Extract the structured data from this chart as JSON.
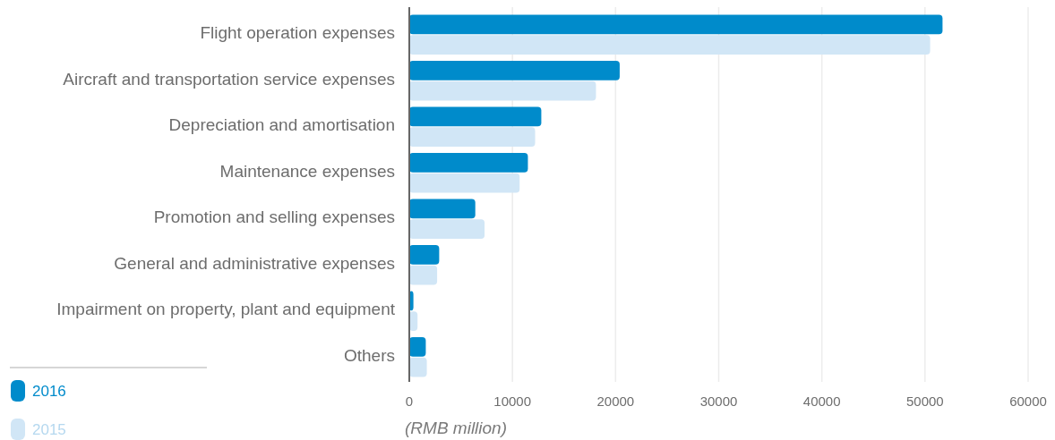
{
  "chart_data": {
    "type": "bar",
    "orientation": "horizontal",
    "categories": [
      "Flight operation expenses",
      "Aircraft and transportation service expenses",
      "Depreciation and amortisation",
      "Maintenance expenses",
      "Promotion and selling expenses",
      "General and administrative expenses",
      "Impairment on property, plant and equipment",
      "Others"
    ],
    "series": [
      {
        "name": "2016",
        "color": "#008bcb",
        "values": [
          51700,
          20400,
          12800,
          11500,
          6400,
          2900,
          400,
          1600
        ]
      },
      {
        "name": "2015",
        "color": "#d1e6f6",
        "values": [
          50500,
          18100,
          12200,
          10700,
          7300,
          2700,
          800,
          1700
        ]
      }
    ],
    "xlim": [
      0,
      60000
    ],
    "xticks": [
      0,
      10000,
      20000,
      30000,
      40000,
      50000,
      60000
    ],
    "xlabel": "(RMB million)",
    "grid": "x",
    "legend": "bottom left"
  }
}
